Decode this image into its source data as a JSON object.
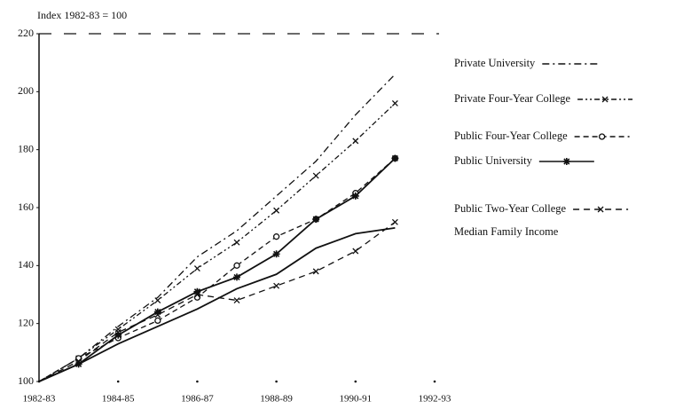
{
  "chart_data": {
    "type": "line",
    "y_label": "Index   1982-83 = 100",
    "categories": [
      "1982-83",
      null,
      "1984-85",
      null,
      "1986-87",
      null,
      "1988-89",
      null,
      "1990-91",
      null,
      "1992-93"
    ],
    "ylim": [
      100,
      220
    ],
    "yticks": [
      100,
      120,
      140,
      160,
      180,
      200,
      220
    ],
    "series": [
      {
        "name": "Private University",
        "color": "#111111",
        "values": [
          100,
          108,
          119,
          129,
          143,
          152,
          164,
          176,
          192,
          206,
          null
        ]
      },
      {
        "name": "Private Four-Year College",
        "color": "#111111",
        "values": [
          100,
          108,
          118,
          128,
          139,
          148,
          159,
          171,
          183,
          196,
          null
        ]
      },
      {
        "name": "Public Four-Year College",
        "color": "#111111",
        "values": [
          100,
          108,
          115,
          121,
          129,
          140,
          150,
          156,
          165,
          177,
          null
        ]
      },
      {
        "name": "Public University",
        "color": "#111111",
        "values": [
          100,
          106,
          116,
          124,
          131,
          136,
          144,
          156,
          164,
          177,
          null
        ]
      },
      {
        "name": "Public Two-Year College",
        "color": "#111111",
        "values": [
          100,
          107,
          117,
          123,
          130,
          128,
          133,
          138,
          145,
          155,
          null
        ]
      },
      {
        "name": "Median Family Income",
        "color": "#111111",
        "values": [
          100,
          106,
          113,
          119,
          125,
          132,
          137,
          146,
          151,
          153,
          null
        ]
      }
    ]
  }
}
